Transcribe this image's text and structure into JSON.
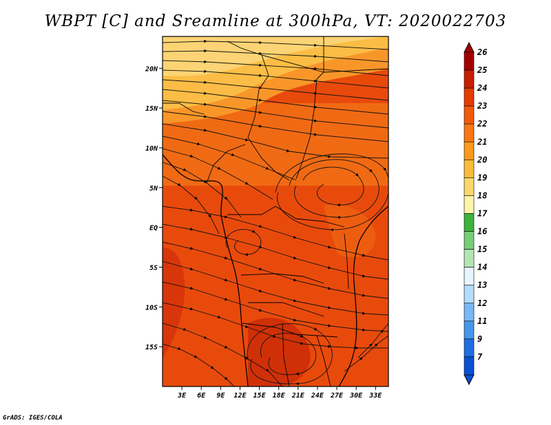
{
  "title": "WBPT [C] and Sreamline at 300hPa, VT: 2020022703",
  "footer": "GrADS: IGES/COLA",
  "map": {
    "lon_range": [
      0,
      35
    ],
    "lat_range": [
      -20,
      24
    ],
    "lat_labels": [
      {
        "lat": 20,
        "label": "20N"
      },
      {
        "lat": 15,
        "label": "15N"
      },
      {
        "lat": 10,
        "label": "10N"
      },
      {
        "lat": 5,
        "label": "5N"
      },
      {
        "lat": 0,
        "label": "EQ"
      },
      {
        "lat": -5,
        "label": "5S"
      },
      {
        "lat": -10,
        "label": "10S"
      },
      {
        "lat": -15,
        "label": "15S"
      }
    ],
    "lon_labels": [
      {
        "lon": 3,
        "label": "3E"
      },
      {
        "lon": 6,
        "label": "6E"
      },
      {
        "lon": 9,
        "label": "9E"
      },
      {
        "lon": 12,
        "label": "12E"
      },
      {
        "lon": 15,
        "label": "15E"
      },
      {
        "lon": 18,
        "label": "18E"
      },
      {
        "lon": 21,
        "label": "21E"
      },
      {
        "lon": 24,
        "label": "24E"
      },
      {
        "lon": 27,
        "label": "27E"
      },
      {
        "lon": 30,
        "label": "30E"
      },
      {
        "lon": 33,
        "label": "33E"
      }
    ]
  },
  "colorbar": {
    "labels": [
      "26",
      "25",
      "24",
      "23",
      "22",
      "21",
      "20",
      "19",
      "18",
      "17",
      "16",
      "15",
      "14",
      "13",
      "12",
      "11",
      "9",
      "7"
    ],
    "colors": [
      "#a50000",
      "#c81e00",
      "#e63c00",
      "#f25a0a",
      "#fa7814",
      "#fc9a1c",
      "#fbbb3a",
      "#fbd86b",
      "#fff3a8",
      "#3cb43c",
      "#78cd78",
      "#b4e6b4",
      "#e6f5ff",
      "#b4dcff",
      "#78b9f5",
      "#4696eb",
      "#1e6ee1",
      "#0a50d2"
    ]
  }
}
